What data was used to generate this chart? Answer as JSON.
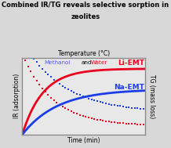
{
  "title_line1": "Combined IR/TG reveals selective sorption in",
  "title_line2": "zeolites",
  "top_xlabel": "Temperature (°C)",
  "bottom_xlabel": "Time (min)",
  "ylabel_left": "IR (adsorption)",
  "ylabel_right": "TG (mass loss)",
  "legend_methanol": "Methanol",
  "legend_and": " and ",
  "legend_water": "Water",
  "label_li": "Li-EMT",
  "label_na": "Na-EMT",
  "color_red": "#e8001c",
  "color_blue": "#1a3de8",
  "color_legend_methanol": "#5555ff",
  "color_legend_water": "#e8001c",
  "bg_color": "#d8d8d8",
  "plot_bg": "#e8e8e8",
  "n_points": 300
}
